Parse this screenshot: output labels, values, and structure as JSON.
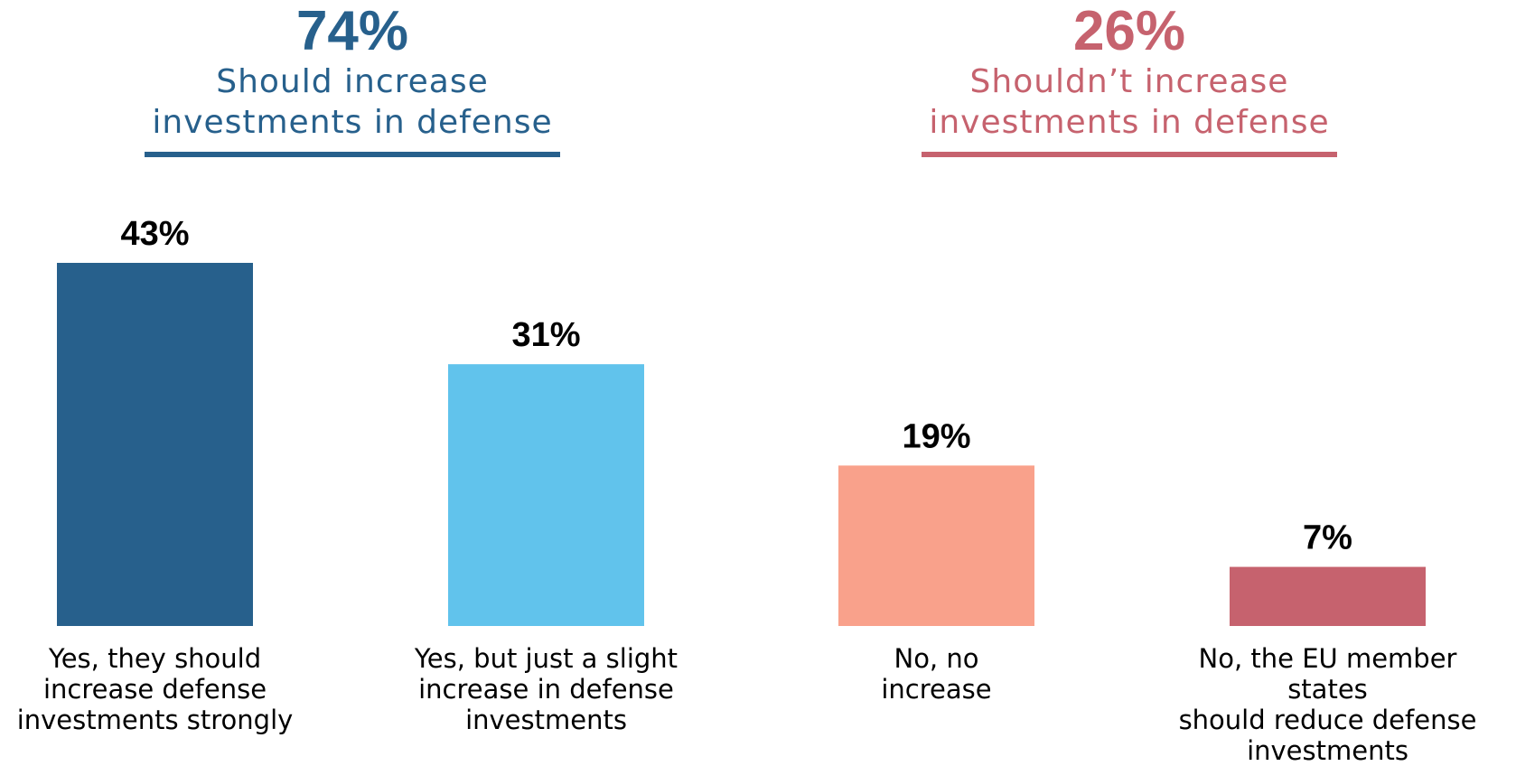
{
  "groups": [
    {
      "percent": "74%",
      "label_line1": "Should increase",
      "label_line2": "investments in defense",
      "color": "#27608c"
    },
    {
      "percent": "26%",
      "label_line1": "Shouldn’t increase",
      "label_line2": "investments in defense",
      "color": "#c6626e"
    }
  ],
  "chart_data": {
    "type": "bar",
    "categories": [
      "Yes, they should increase defense investments strongly",
      "Yes, but just a slight increase in defense investments",
      "No, no increase",
      "No, the EU member states should reduce defense investments"
    ],
    "category_lines": [
      [
        "Yes, they should",
        "increase defense",
        "investments strongly"
      ],
      [
        "Yes, but just a slight",
        "increase in defense",
        "investments"
      ],
      [
        "No, no",
        "increase"
      ],
      [
        "No, the EU member states",
        "should reduce defense",
        "investments"
      ]
    ],
    "values": [
      43,
      31,
      19,
      7
    ],
    "value_labels": [
      "43%",
      "31%",
      "19%",
      "7%"
    ],
    "colors": [
      "#27608c",
      "#61c3ec",
      "#f9a18b",
      "#c6626e"
    ],
    "ylim": [
      0,
      43
    ],
    "grid": false,
    "legend": "none"
  }
}
